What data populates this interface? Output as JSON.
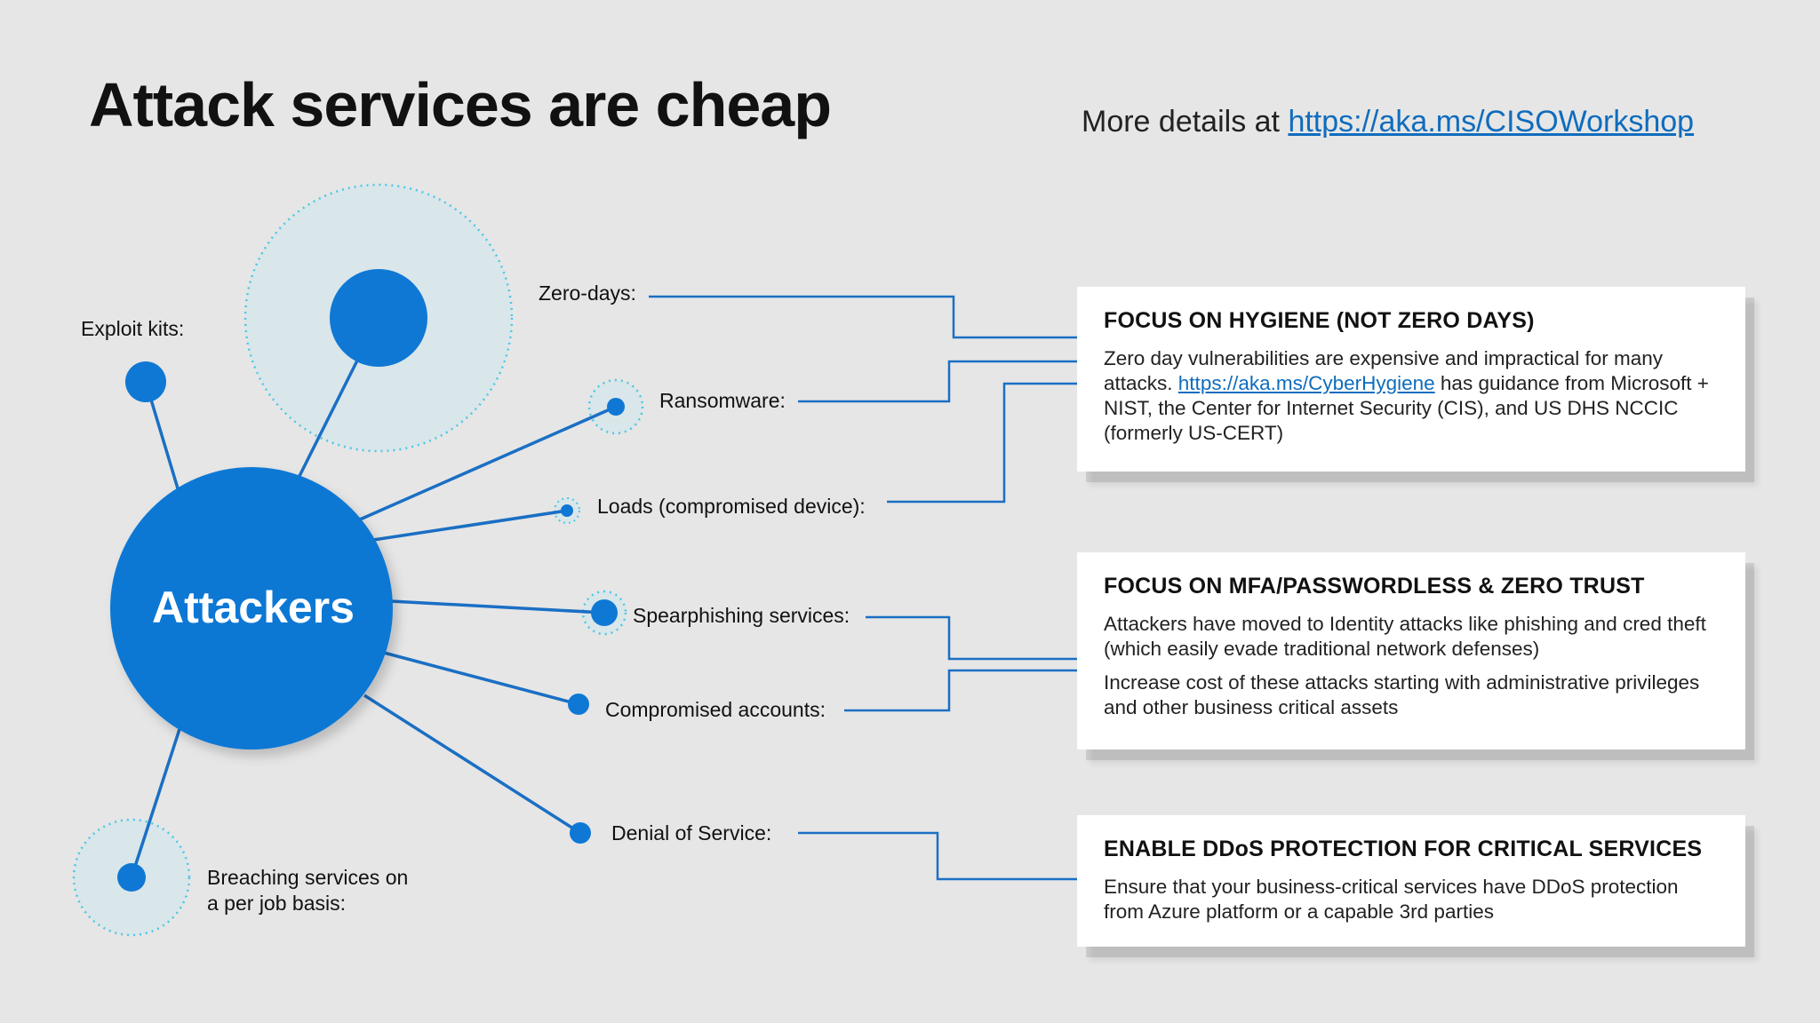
{
  "title": "Attack services are cheap",
  "more_details": {
    "prefix": "More details at ",
    "link": "https://aka.ms/CISOWorkshop"
  },
  "diagram": {
    "hub": "Attackers",
    "labels": {
      "exploit_kits": "Exploit kits:",
      "zero_days": "Zero-days:",
      "ransomware": "Ransomware:",
      "loads": "Loads (compromised device):",
      "spearphishing": "Spearphishing services:",
      "compromised_accounts": "Compromised accounts:",
      "denial_of_service": "Denial of Service:",
      "breaching_line1": "Breaching services on",
      "breaching_line2": "a per job basis:"
    }
  },
  "cards": {
    "hygiene": {
      "heading": "FOCUS ON HYGIENE (NOT ZERO DAYS)",
      "text_before_link": "Zero day vulnerabilities are expensive and impractical for many attacks. ",
      "link": "https://aka.ms/CyberHygiene",
      "text_after_link": " has guidance from Microsoft + NIST, the Center for Internet Security (CIS), and US DHS NCCIC (formerly US-CERT)"
    },
    "mfa": {
      "heading": "FOCUS ON MFA/PASSWORDLESS & ZERO TRUST",
      "para1": "Attackers have moved to Identity attacks like phishing and cred theft (which easily evade traditional network defenses)",
      "para2": "Increase cost of these attacks starting with administrative privileges and other business critical assets"
    },
    "ddos": {
      "heading": "ENABLE DDoS PROTECTION FOR CRITICAL SERVICES",
      "para1": "Ensure that your business-critical services have DDoS protection from Azure platform or a capable 3rd parties"
    }
  },
  "colors": {
    "accent": "#0f78d4",
    "line": "#1a6fc4",
    "halo_fill": "#d9e6ea",
    "halo_stroke": "#4cc7e6"
  }
}
